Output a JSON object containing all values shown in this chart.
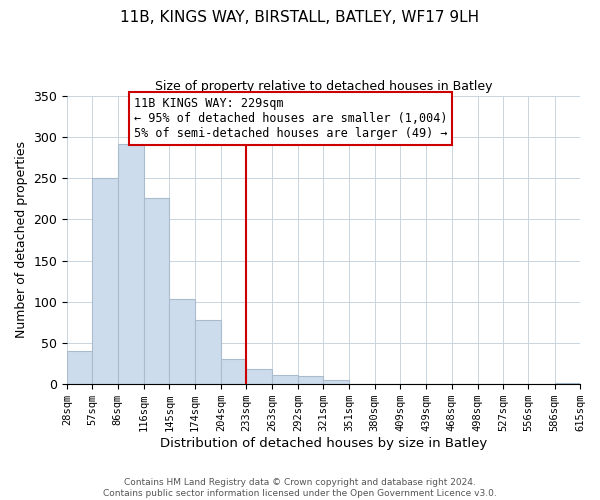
{
  "title_line1": "11B, KINGS WAY, BIRSTALL, BATLEY, WF17 9LH",
  "title_line2": "Size of property relative to detached houses in Batley",
  "xlabel": "Distribution of detached houses by size in Batley",
  "ylabel": "Number of detached properties",
  "bar_color": "#ccdcec",
  "bar_edge_color": "#aabccc",
  "vline_color": "#cc0000",
  "vline_x": 233,
  "bin_edges": [
    28,
    57,
    86,
    116,
    145,
    174,
    204,
    233,
    263,
    292,
    321,
    351,
    380,
    409,
    439,
    468,
    498,
    527,
    556,
    586,
    615
  ],
  "bar_heights": [
    40,
    250,
    291,
    226,
    103,
    78,
    30,
    19,
    11,
    10,
    5,
    0,
    0,
    0,
    0,
    0,
    0,
    0,
    0,
    2
  ],
  "xlim_left": 28,
  "xlim_right": 615,
  "ylim_top": 350,
  "yticks": [
    0,
    50,
    100,
    150,
    200,
    250,
    300,
    350
  ],
  "annotation_title": "11B KINGS WAY: 229sqm",
  "annotation_line2": "← 95% of detached houses are smaller (1,004)",
  "annotation_line3": "5% of semi-detached houses are larger (49) →",
  "footer_line1": "Contains HM Land Registry data © Crown copyright and database right 2024.",
  "footer_line2": "Contains public sector information licensed under the Open Government Licence v3.0.",
  "tick_labels": [
    "28sqm",
    "57sqm",
    "86sqm",
    "116sqm",
    "145sqm",
    "174sqm",
    "204sqm",
    "233sqm",
    "263sqm",
    "292sqm",
    "321sqm",
    "351sqm",
    "380sqm",
    "409sqm",
    "439sqm",
    "468sqm",
    "498sqm",
    "527sqm",
    "556sqm",
    "586sqm",
    "615sqm"
  ]
}
